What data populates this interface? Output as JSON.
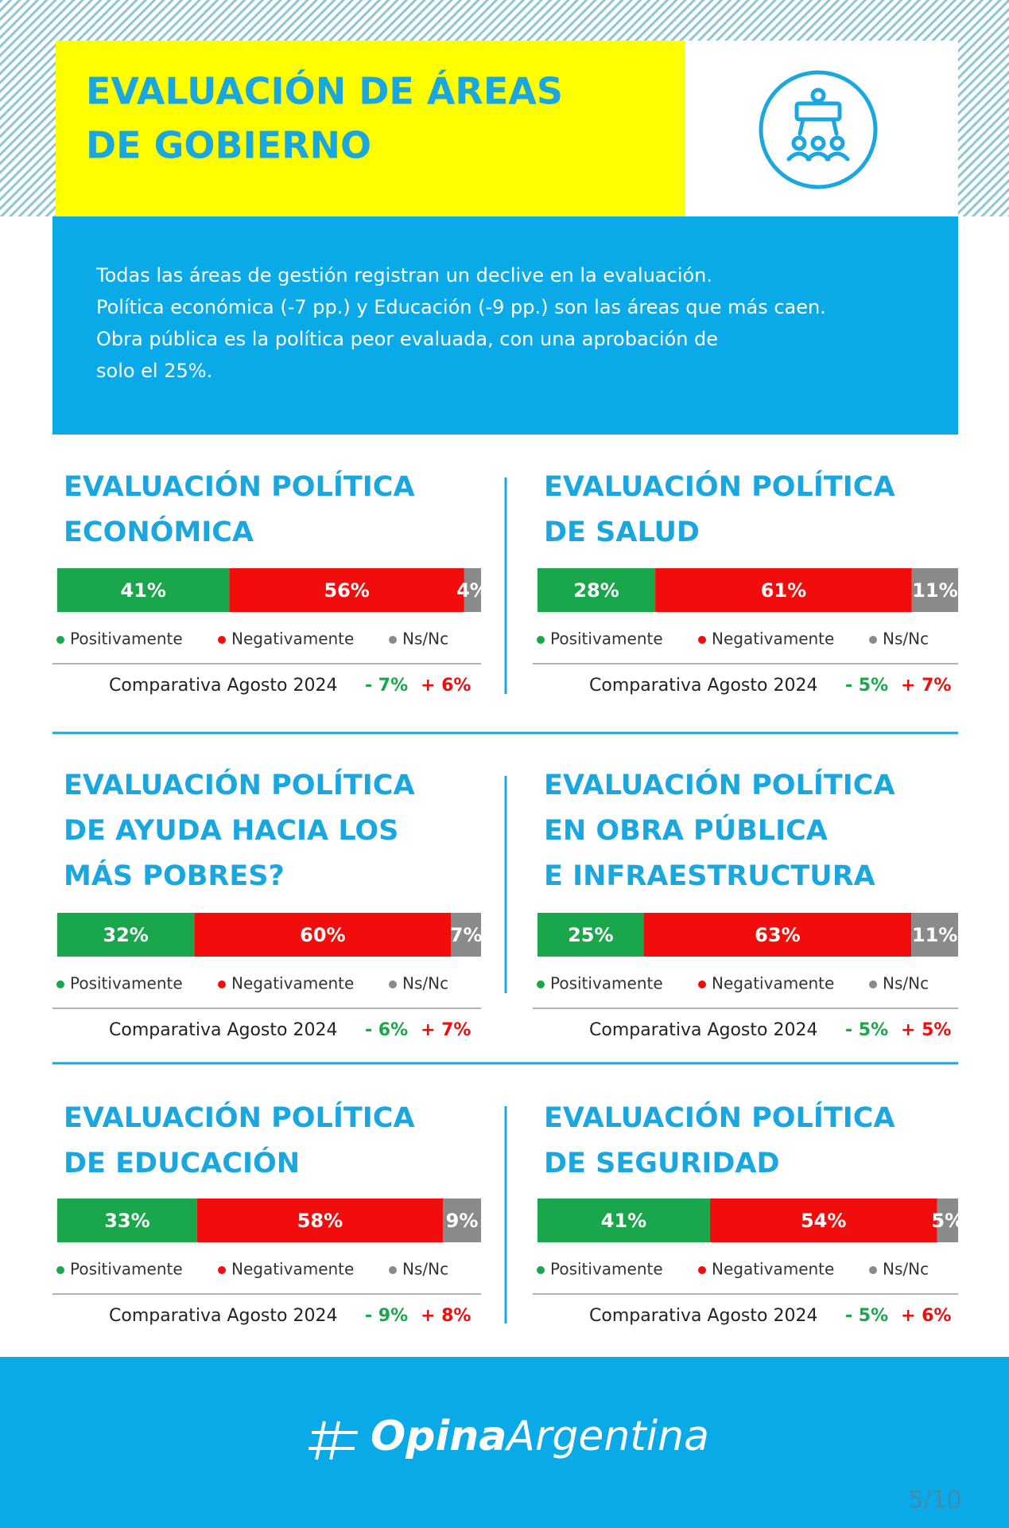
{
  "header": {
    "title": [
      "EVALUACIÓN DE ÁREAS",
      "DE GOBIERNO"
    ],
    "summary": [
      "Todas las áreas de gestión registran un declive en la evaluación.",
      "Política económica (-7 pp.) y Educación (-9 pp.) son las áreas que más caen.",
      "Obra pública es la política peor evaluada, con una aprobación de",
      "solo el 25%."
    ]
  },
  "chart_data": [
    {
      "type": "stacked_bar",
      "title": [
        "EVALUACIÓN POLÍTICA",
        "ECONÓMICA"
      ],
      "series": [
        {
          "name": "Positivamente",
          "color": "#1aa64a",
          "values": [
            41
          ],
          "value_labels": [
            "41%"
          ]
        },
        {
          "name": "Negativamente",
          "color": "#f20d0d",
          "values": [
            56
          ],
          "value_labels": [
            "56%"
          ]
        },
        {
          "name": "Ns/Nc",
          "color": "#8a8a8a",
          "values": [
            4
          ],
          "value_labels": [
            "4%"
          ]
        }
      ],
      "comparison": {
        "label": "Comparativa Agosto 2024",
        "changes": [
          {
            "value": -7,
            "label": "- 7%",
            "color": "#1aa64a"
          },
          {
            "value": 6,
            "label": "+ 6%",
            "color": "#f20d0d"
          }
        ]
      }
    },
    {
      "type": "stacked_bar",
      "title": [
        "EVALUACIÓN POLÍTICA",
        "DE SALUD"
      ],
      "series": [
        {
          "name": "Positivamente",
          "color": "#1aa64a",
          "values": [
            28
          ],
          "value_labels": [
            "28%"
          ]
        },
        {
          "name": "Negativamente",
          "color": "#f20d0d",
          "values": [
            61
          ],
          "value_labels": [
            "61%"
          ]
        },
        {
          "name": "Ns/Nc",
          "color": "#8a8a8a",
          "values": [
            11
          ],
          "value_labels": [
            "11%"
          ]
        }
      ],
      "comparison": {
        "label": "Comparativa Agosto 2024",
        "changes": [
          {
            "value": -5,
            "label": "- 5%",
            "color": "#1aa64a"
          },
          {
            "value": 7,
            "label": "+ 7%",
            "color": "#f20d0d"
          }
        ]
      }
    },
    {
      "type": "stacked_bar",
      "title": [
        "EVALUACIÓN POLÍTICA",
        "DE AYUDA HACIA LOS",
        "MÁS POBRES?"
      ],
      "series": [
        {
          "name": "Positivamente",
          "color": "#1aa64a",
          "values": [
            32
          ],
          "value_labels": [
            "32%"
          ]
        },
        {
          "name": "Negativamente",
          "color": "#f20d0d",
          "values": [
            60
          ],
          "value_labels": [
            "60%"
          ]
        },
        {
          "name": "Ns/Nc",
          "color": "#8a8a8a",
          "values": [
            7
          ],
          "value_labels": [
            "7%"
          ]
        }
      ],
      "comparison": {
        "label": "Comparativa Agosto 2024",
        "changes": [
          {
            "value": -6,
            "label": "- 6%",
            "color": "#1aa64a"
          },
          {
            "value": 7,
            "label": "+ 7%",
            "color": "#f20d0d"
          }
        ]
      }
    },
    {
      "type": "stacked_bar",
      "title": [
        "EVALUACIÓN POLÍTICA",
        "EN OBRA PÚBLICA",
        "E INFRAESTRUCTURA"
      ],
      "series": [
        {
          "name": "Positivamente",
          "color": "#1aa64a",
          "values": [
            25
          ],
          "value_labels": [
            "25%"
          ]
        },
        {
          "name": "Negativamente",
          "color": "#f20d0d",
          "values": [
            63
          ],
          "value_labels": [
            "63%"
          ]
        },
        {
          "name": "Ns/Nc",
          "color": "#8a8a8a",
          "values": [
            11
          ],
          "value_labels": [
            "11%"
          ]
        }
      ],
      "comparison": {
        "label": "Comparativa Agosto 2024",
        "changes": [
          {
            "value": -5,
            "label": "- 5%",
            "color": "#1aa64a"
          },
          {
            "value": 5,
            "label": "+ 5%",
            "color": "#f20d0d"
          }
        ]
      }
    },
    {
      "type": "stacked_bar",
      "title": [
        "EVALUACIÓN POLÍTICA",
        "DE EDUCACIÓN"
      ],
      "series": [
        {
          "name": "Positivamente",
          "color": "#1aa64a",
          "values": [
            33
          ],
          "value_labels": [
            "33%"
          ]
        },
        {
          "name": "Negativamente",
          "color": "#f20d0d",
          "values": [
            58
          ],
          "value_labels": [
            "58%"
          ]
        },
        {
          "name": "Ns/Nc",
          "color": "#8a8a8a",
          "values": [
            9
          ],
          "value_labels": [
            "9%"
          ]
        }
      ],
      "comparison": {
        "label": "Comparativa Agosto 2024",
        "changes": [
          {
            "value": -9,
            "label": "- 9%",
            "color": "#1aa64a"
          },
          {
            "value": 8,
            "label": "+ 8%",
            "color": "#f20d0d"
          }
        ]
      }
    },
    {
      "type": "stacked_bar",
      "title": [
        "EVALUACIÓN POLÍTICA",
        "DE SEGURIDAD"
      ],
      "series": [
        {
          "name": "Positivamente",
          "color": "#1aa64a",
          "values": [
            41
          ],
          "value_labels": [
            "41%"
          ]
        },
        {
          "name": "Negativamente",
          "color": "#f20d0d",
          "values": [
            54
          ],
          "value_labels": [
            "54%"
          ]
        },
        {
          "name": "Ns/Nc",
          "color": "#8a8a8a",
          "values": [
            5
          ],
          "value_labels": [
            "5%"
          ]
        }
      ],
      "comparison": {
        "label": "Comparativa Agosto 2024",
        "changes": [
          {
            "value": -5,
            "label": "- 5%",
            "color": "#1aa64a"
          },
          {
            "value": 6,
            "label": "+ 6%",
            "color": "#f20d0d"
          }
        ]
      }
    }
  ],
  "footer": {
    "brand": [
      "Opina",
      "Argentina"
    ],
    "page": "5/10"
  }
}
